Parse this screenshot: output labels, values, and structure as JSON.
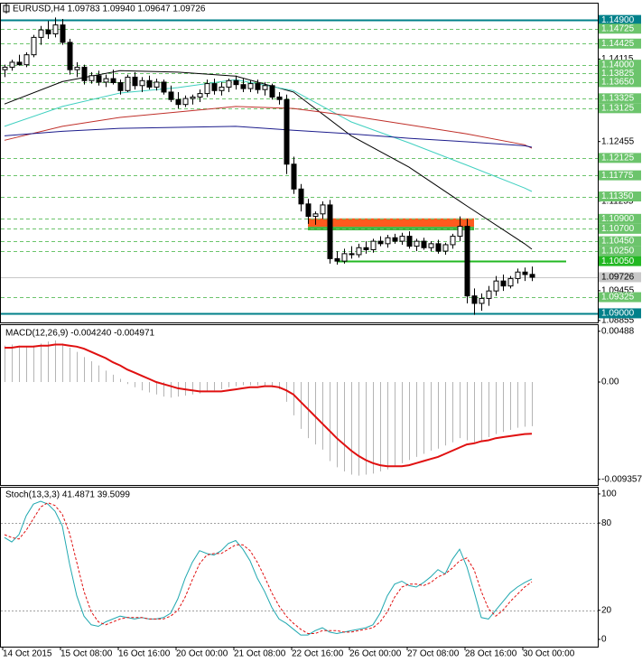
{
  "chart_data": [
    {
      "type": "candlestick",
      "title": "EURUSD,H4 1.09783 1.09940 1.09647 1.09726",
      "categories": [
        "14 Oct 2015",
        null,
        null,
        null,
        null,
        null,
        null,
        null,
        "15 Oct 08:00",
        null,
        null,
        null,
        null,
        null,
        null,
        null,
        "16 Oct 16:00",
        null,
        null,
        null,
        null,
        null,
        null,
        null,
        "20 Oct 00:00",
        null,
        null,
        null,
        null,
        null,
        null,
        null,
        "21 Oct 08:00",
        null,
        null,
        null,
        null,
        null,
        null,
        null,
        "22 Oct 16:00",
        null,
        null,
        null,
        null,
        null,
        null,
        null,
        "26 Oct 00:00",
        null,
        null,
        null,
        null,
        null,
        null,
        null,
        "27 Oct 08:00",
        null,
        null,
        null,
        null,
        null,
        null,
        null,
        "28 Oct 16:00",
        null,
        null,
        null,
        null,
        null,
        null,
        null,
        "30 Oct 00:00",
        null
      ],
      "open": [
        1.139,
        1.1395,
        1.1405,
        1.14,
        1.142,
        1.1455,
        1.147,
        1.1462,
        1.148,
        1.1445,
        1.139,
        1.1395,
        1.1368,
        1.1378,
        1.1365,
        1.1372,
        1.1364,
        1.1348,
        1.1375,
        1.1358,
        1.1368,
        1.1355,
        1.1365,
        1.1345,
        1.133,
        1.132,
        1.1332,
        1.1335,
        1.1342,
        1.1362,
        1.1348,
        1.1355,
        1.1368,
        1.136,
        1.1352,
        1.1362,
        1.135,
        1.1358,
        1.1335,
        1.133,
        1.12,
        1.115,
        1.112,
        1.1095,
        1.11,
        1.1118,
        1.101,
        1.1005,
        1.102,
        1.1018,
        1.1032,
        1.1028,
        1.1045,
        1.104,
        1.1052,
        1.1045,
        1.1055,
        1.1035,
        1.1045,
        1.1032,
        1.104,
        1.1025,
        1.1038,
        1.1055,
        1.1075,
        1.0935,
        1.092,
        1.093,
        1.0945,
        1.0965,
        1.0955,
        1.097,
        1.0983,
        1.09783
      ],
      "high": [
        1.14,
        1.141,
        1.142,
        1.1425,
        1.146,
        1.1478,
        1.1488,
        1.1495,
        1.1492,
        1.1452,
        1.1405,
        1.14,
        1.1385,
        1.1388,
        1.138,
        1.139,
        1.137,
        1.138,
        1.1385,
        1.1375,
        1.1378,
        1.1372,
        1.137,
        1.1358,
        1.1345,
        1.1338,
        1.134,
        1.135,
        1.137,
        1.1372,
        1.1365,
        1.1372,
        1.1378,
        1.1372,
        1.1368,
        1.137,
        1.1365,
        1.1362,
        1.1345,
        1.134,
        1.1215,
        1.116,
        1.113,
        1.1105,
        1.1125,
        1.1128,
        1.1025,
        1.103,
        1.1035,
        1.104,
        1.1045,
        1.105,
        1.1055,
        1.1058,
        1.106,
        1.1062,
        1.1065,
        1.105,
        1.1052,
        1.1045,
        1.1048,
        1.1042,
        1.106,
        1.1095,
        1.109,
        1.095,
        1.094,
        1.0955,
        1.0975,
        1.0978,
        1.0975,
        1.099,
        1.0992,
        1.0994
      ],
      "low": [
        1.1375,
        1.1388,
        1.1398,
        1.1395,
        1.1415,
        1.144,
        1.1452,
        1.1455,
        1.144,
        1.138,
        1.1375,
        1.136,
        1.1362,
        1.1358,
        1.1355,
        1.136,
        1.134,
        1.1345,
        1.135,
        1.1345,
        1.135,
        1.1348,
        1.134,
        1.1325,
        1.1312,
        1.1315,
        1.132,
        1.1325,
        1.1335,
        1.134,
        1.1338,
        1.1345,
        1.135,
        1.1345,
        1.1345,
        1.1342,
        1.1338,
        1.133,
        1.132,
        1.118,
        1.114,
        1.1105,
        1.108,
        1.1078,
        1.109,
        1.1,
        1.0998,
        1.1,
        1.101,
        1.1012,
        1.102,
        1.1022,
        1.1035,
        1.1032,
        1.104,
        1.1038,
        1.103,
        1.1025,
        1.1028,
        1.1025,
        1.102,
        1.1018,
        1.103,
        1.1045,
        1.092,
        1.0897,
        1.0905,
        1.0915,
        1.0935,
        1.0945,
        1.095,
        1.096,
        1.0965,
        1.09647
      ],
      "close": [
        1.1395,
        1.1405,
        1.14,
        1.142,
        1.1455,
        1.147,
        1.1462,
        1.148,
        1.1445,
        1.139,
        1.1395,
        1.1368,
        1.1378,
        1.1365,
        1.1372,
        1.1364,
        1.1348,
        1.1375,
        1.1358,
        1.1368,
        1.1355,
        1.1365,
        1.1345,
        1.133,
        1.132,
        1.1332,
        1.1335,
        1.1342,
        1.1362,
        1.1348,
        1.1355,
        1.1368,
        1.136,
        1.1352,
        1.1362,
        1.135,
        1.1358,
        1.1335,
        1.133,
        1.12,
        1.115,
        1.112,
        1.1095,
        1.11,
        1.1118,
        1.101,
        1.1005,
        1.102,
        1.1018,
        1.1032,
        1.1028,
        1.1045,
        1.104,
        1.1052,
        1.1045,
        1.1055,
        1.1035,
        1.1045,
        1.1032,
        1.104,
        1.1025,
        1.1038,
        1.1055,
        1.1075,
        1.0935,
        1.092,
        1.093,
        1.0945,
        1.0965,
        1.0955,
        1.097,
        1.0983,
        1.0978,
        1.09726
      ],
      "up_color": "#ffffff",
      "down_color": "#000000",
      "indicators": [
        {
          "color": "#000000",
          "x": [
            0,
            8,
            16,
            24,
            32,
            40,
            48,
            56,
            64,
            72,
            73
          ],
          "values": [
            1.1321,
            1.1366,
            1.1388,
            1.1385,
            1.1377,
            1.1345,
            1.1257,
            1.1194,
            1.1116,
            1.104,
            1.1029
          ]
        },
        {
          "color": "#40d0c0",
          "x": [
            0,
            8,
            16,
            24,
            32,
            40,
            48,
            56,
            64,
            72,
            73
          ],
          "values": [
            1.1276,
            1.1316,
            1.1343,
            1.1354,
            1.137,
            1.1348,
            1.1285,
            1.1243,
            1.1198,
            1.1152,
            1.1145
          ]
        },
        {
          "color": "#c0302a",
          "x": [
            0,
            8,
            16,
            24,
            32,
            40,
            48,
            56,
            64,
            72,
            73
          ],
          "values": [
            1.1248,
            1.1276,
            1.1294,
            1.1305,
            1.1316,
            1.1312,
            1.1297,
            1.1279,
            1.1261,
            1.1239,
            1.1232
          ]
        },
        {
          "color": "#1c1c8c",
          "x": [
            0,
            8,
            16,
            24,
            32,
            40,
            48,
            56,
            64,
            72,
            73
          ],
          "values": [
            1.1257,
            1.1266,
            1.1272,
            1.1274,
            1.1276,
            1.1268,
            1.1261,
            1.1252,
            1.1245,
            1.1237,
            1.1234
          ]
        }
      ],
      "zones": [
        {
          "from": 1.1074,
          "to": 1.1091,
          "x_from": 42,
          "x_to": 65,
          "color": "#ff5a1e"
        },
        {
          "from": 1.1067,
          "to": 1.1074,
          "x_from": 42,
          "x_to": 65,
          "color": "#3cb43c"
        }
      ],
      "ylim": [
        1.08817,
        1.15229
      ],
      "yticks": [
        1.14115,
        1.12455,
        1.11255,
        1.09455,
        1.08855
      ],
      "levels": [
        {
          "value": 1.149,
          "label": "1.14900",
          "color": "#00808a",
          "style": "thick"
        },
        {
          "value": 1.14725,
          "label": "1.14725",
          "color": "#6cc46c",
          "style": "dashed"
        },
        {
          "value": 1.14425,
          "label": "1.14425",
          "color": "#6cc46c",
          "style": "dashed"
        },
        {
          "value": 1.14,
          "label": "1.14000",
          "color": "#6cc46c",
          "style": "dashed"
        },
        {
          "value": 1.13825,
          "label": "1.13825",
          "color": "#6cc46c",
          "style": "dashed"
        },
        {
          "value": 1.1365,
          "label": "1.13650",
          "color": "#6cc46c",
          "style": "dashed"
        },
        {
          "value": 1.13325,
          "label": "1.13325",
          "color": "#6cc46c",
          "style": "dashed"
        },
        {
          "value": 1.13125,
          "label": "1.13125",
          "color": "#6cc46c",
          "style": "dashed"
        },
        {
          "value": 1.12125,
          "label": "1.12125",
          "color": "#6cc46c",
          "style": "dashed"
        },
        {
          "value": 1.11775,
          "label": "1.11775",
          "color": "#6cc46c",
          "style": "dashed"
        },
        {
          "value": 1.1135,
          "label": "1.11350",
          "color": "#6cc46c",
          "style": "dashed"
        },
        {
          "value": 1.109,
          "label": "1.10900",
          "color": "#6cc46c",
          "style": "dashed"
        },
        {
          "value": 1.107,
          "label": "1.10700",
          "color": "#6cc46c",
          "style": "dashed"
        },
        {
          "value": 1.1045,
          "label": "1.10450",
          "color": "#6cc46c",
          "style": "dashed"
        },
        {
          "value": 1.1025,
          "label": "1.10250",
          "color": "#6cc46c",
          "style": "dashed"
        },
        {
          "value": 1.1005,
          "label": "1.10050",
          "color": "#22b822",
          "style": "thick",
          "x_from": 46
        },
        {
          "value": 1.09726,
          "label": "1.09726",
          "color": "#c8c8c8",
          "style": "solid",
          "text_color": "#000000"
        },
        {
          "value": 1.09325,
          "label": "1.09325",
          "color": "#6cc46c",
          "style": "dashed"
        },
        {
          "value": 1.09,
          "label": "1.09000",
          "color": "#00808a",
          "style": "thick"
        }
      ]
    },
    {
      "type": "macd",
      "title": "MACD(12,26,9) -0.004240 -0.004971",
      "series": [
        {
          "style": "histogram",
          "color": "#b4b4b4",
          "values": [
            0.0035,
            0.0036,
            0.0035,
            0.0034,
            0.0035,
            0.0037,
            0.0039,
            0.004,
            0.0037,
            0.0033,
            0.0029,
            0.0024,
            0.002,
            0.0016,
            0.0011,
            0.0007,
            0.0003,
            -0.0002,
            -0.0005,
            -0.0008,
            -0.001,
            -0.0012,
            -0.0014,
            -0.0015,
            -0.0014,
            -0.0013,
            -0.0012,
            -0.0011,
            -0.0009,
            -0.0008,
            -0.0007,
            -0.0005,
            -0.0004,
            -0.0003,
            -0.0003,
            -0.0003,
            -0.0004,
            -0.0005,
            -0.0007,
            -0.0019,
            -0.0032,
            -0.0045,
            -0.0054,
            -0.006,
            -0.0065,
            -0.0076,
            -0.0082,
            -0.0086,
            -0.0089,
            -0.009,
            -0.0089,
            -0.0088,
            -0.0086,
            -0.0084,
            -0.0081,
            -0.0078,
            -0.0075,
            -0.0072,
            -0.0069,
            -0.0066,
            -0.0064,
            -0.0061,
            -0.0058,
            -0.0054,
            -0.0056,
            -0.0058,
            -0.0056,
            -0.0053,
            -0.005,
            -0.0048,
            -0.0046,
            -0.0044,
            -0.0043,
            -0.00424
          ]
        },
        {
          "style": "line",
          "color": "#e01010",
          "values": [
            0.0033,
            0.0033,
            0.0034,
            0.0034,
            0.0034,
            0.0035,
            0.0035,
            0.0036,
            0.0036,
            0.0035,
            0.0034,
            0.0032,
            0.0029,
            0.0026,
            0.0023,
            0.0019,
            0.0016,
            0.0012,
            0.0009,
            0.0006,
            0.0003,
            0,
            -0.0002,
            -0.0004,
            -0.0006,
            -0.0007,
            -0.0008,
            -0.0009,
            -0.0009,
            -0.0009,
            -0.0009,
            -0.0008,
            -0.0007,
            -0.0006,
            -0.0005,
            -0.0005,
            -0.0004,
            -0.0004,
            -0.0005,
            -0.0008,
            -0.0012,
            -0.0019,
            -0.0026,
            -0.0033,
            -0.004,
            -0.0047,
            -0.0054,
            -0.006,
            -0.0066,
            -0.0071,
            -0.0075,
            -0.0078,
            -0.008,
            -0.0081,
            -0.0081,
            -0.0081,
            -0.008,
            -0.0078,
            -0.0076,
            -0.0074,
            -0.0072,
            -0.0069,
            -0.0066,
            -0.0063,
            -0.006,
            -0.0059,
            -0.0057,
            -0.0056,
            -0.0054,
            -0.0053,
            -0.0052,
            -0.0051,
            -0.005,
            -0.004971
          ]
        }
      ],
      "ylim": [
        -0.0099,
        0.00547
      ],
      "yticks": [
        0.00488,
        {
          "value": 0,
          "label": "0.00"
        },
        -0.009357
      ]
    },
    {
      "type": "stochastic",
      "title": "Stoch(13,3,3) 41.4871 39.5099",
      "series": [
        {
          "style": "line",
          "color": "#20a8b0",
          "values": [
            70,
            67,
            72,
            85,
            93,
            95,
            93,
            88,
            78,
            52,
            30,
            16,
            10,
            9,
            12,
            14,
            16,
            15,
            14,
            15,
            14,
            14,
            15,
            18,
            28,
            42,
            53,
            61,
            59,
            58,
            61,
            66,
            68,
            62,
            54,
            42,
            33,
            22,
            14,
            11,
            7,
            3,
            3,
            6,
            8,
            5,
            4,
            5,
            6,
            7,
            8,
            10,
            18,
            30,
            38,
            40,
            37,
            36,
            39,
            43,
            48,
            45,
            55,
            62,
            50,
            33,
            15,
            14,
            20,
            26,
            32,
            36,
            39,
            41.4871
          ]
        },
        {
          "style": "dashed",
          "color": "#e01010",
          "values": [
            72,
            70,
            69,
            75,
            83,
            91,
            94,
            92,
            86,
            73,
            53,
            33,
            19,
            12,
            10,
            12,
            14,
            15,
            15,
            15,
            14,
            14,
            14,
            16,
            20,
            29,
            41,
            52,
            58,
            59,
            59,
            62,
            65,
            65,
            61,
            53,
            43,
            32,
            23,
            16,
            11,
            7,
            4,
            4,
            6,
            6,
            6,
            5,
            5,
            6,
            7,
            8,
            12,
            19,
            29,
            36,
            38,
            38,
            37,
            39,
            43,
            45,
            49,
            54,
            56,
            48,
            33,
            21,
            16,
            20,
            26,
            31,
            36,
            39.5099
          ]
        }
      ],
      "levels": [
        80,
        20
      ],
      "ylim": [
        -5,
        104.3
      ],
      "yticks": [
        100,
        80,
        20,
        0
      ]
    }
  ]
}
